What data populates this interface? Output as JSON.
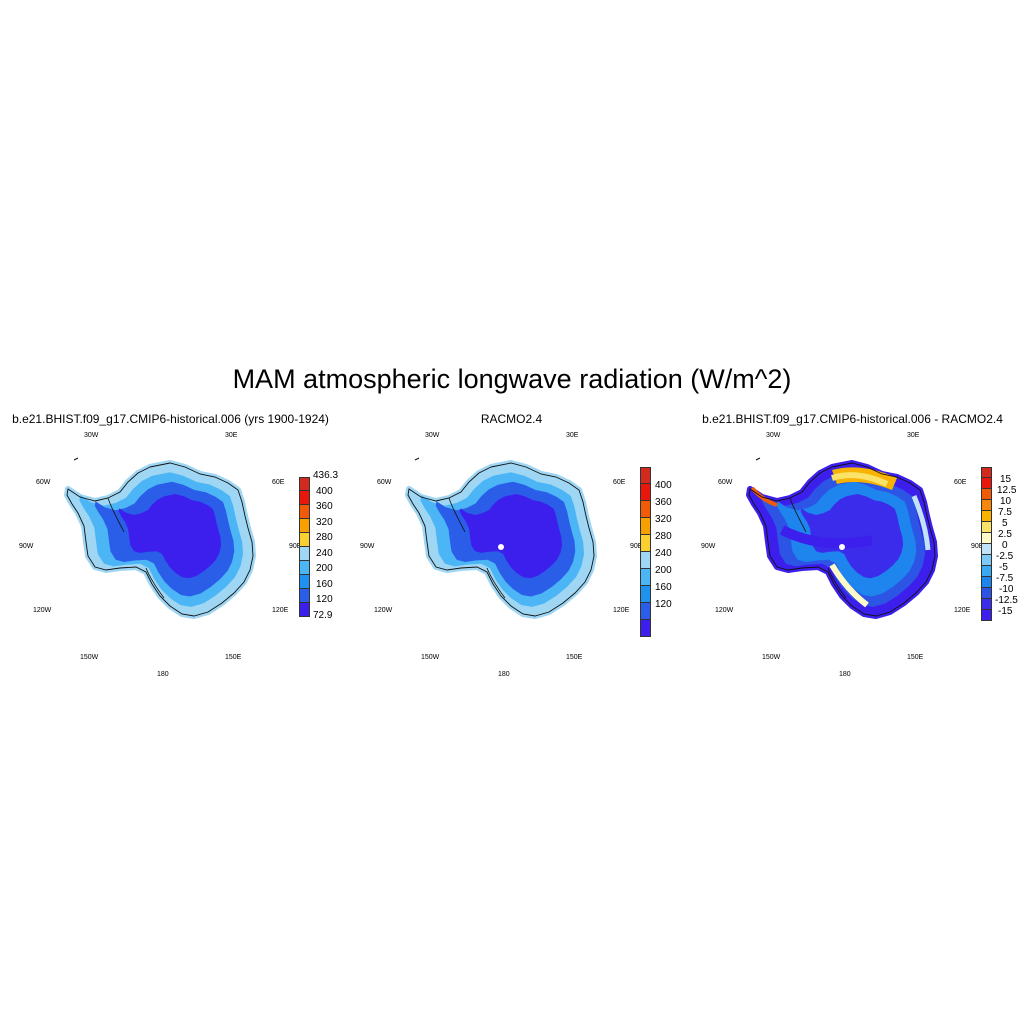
{
  "figure": {
    "title": "MAM atmospheric longwave radiation (W/m^2)"
  },
  "panels": [
    {
      "title": "b.e21.BHIST.f09_g17.CMIP6-historical.006 (yrs 1900-1924)",
      "lon_labels": [
        "30W",
        "30E",
        "60W",
        "60E",
        "90W",
        "90E",
        "120W",
        "120E",
        "150W",
        "150E",
        "180"
      ],
      "colorbar": {
        "labels": [
          "436.3",
          "400",
          "360",
          "320",
          "280",
          "240",
          "200",
          "160",
          "120",
          "72.9"
        ],
        "colors": [
          "#d32a20",
          "#e9160b",
          "#f15b08",
          "#f7a000",
          "#f9d030",
          "#9fd6f3",
          "#4cb5f5",
          "#1f92f0",
          "#2a5de8",
          "#3c1fec"
        ]
      }
    },
    {
      "title": "RACMO2.4",
      "lon_labels": [
        "30W",
        "30E",
        "60W",
        "60E",
        "90W",
        "90E",
        "120W",
        "120E",
        "150W",
        "150E",
        "180"
      ],
      "colorbar": {
        "labels": [
          "400",
          "360",
          "320",
          "280",
          "240",
          "200",
          "160",
          "120"
        ],
        "colors": [
          "#d32a20",
          "#e9160b",
          "#f15b08",
          "#f7a000",
          "#f9d030",
          "#9fd6f3",
          "#4cb5f5",
          "#1f92f0",
          "#2a5de8",
          "#3c1fec"
        ]
      }
    },
    {
      "title": "b.e21.BHIST.f09_g17.CMIP6-historical.006 - RACMO2.4",
      "lon_labels": [
        "30W",
        "30E",
        "60W",
        "60E",
        "90W",
        "90E",
        "120W",
        "120E",
        "150W",
        "150E",
        "180"
      ],
      "colorbar": {
        "labels": [
          "15",
          "12.5",
          "10",
          "7.5",
          "5",
          "2.5",
          "0",
          "-2.5",
          "-5",
          "-7.5",
          "-10",
          "-12.5",
          "-15"
        ],
        "colors": [
          "#d32a20",
          "#e9160b",
          "#f05a06",
          "#f5870a",
          "#f7b300",
          "#fbe36a",
          "#fffbc8",
          "#bfe4f7",
          "#7ccaf5",
          "#39aaf2",
          "#1e84ee",
          "#2c55e6",
          "#3b2bea",
          "#3c1fec"
        ]
      }
    }
  ]
}
